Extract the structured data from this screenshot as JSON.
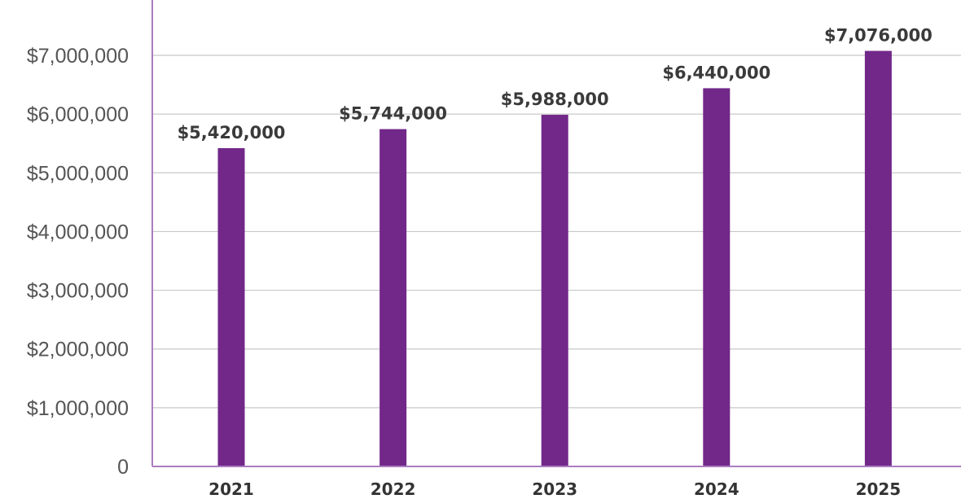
{
  "chart_data": {
    "type": "bar",
    "title": "",
    "xlabel": "",
    "ylabel": "",
    "categories": [
      "2021",
      "2022",
      "2023",
      "2024",
      "2025"
    ],
    "values": [
      5420000,
      5744000,
      5988000,
      6440000,
      7076000
    ],
    "data_labels": [
      "$5,420,000",
      "$5,744,000",
      "$5,988,000",
      "$6,440,000",
      "$7,076,000"
    ],
    "ylim": [
      0,
      7000000
    ],
    "yticks": [
      0,
      1000000,
      2000000,
      3000000,
      4000000,
      5000000,
      6000000,
      7000000
    ],
    "ytick_labels": [
      "0",
      "$1,000,000",
      "$2,000,000",
      "$3,000,000",
      "$4,000,000",
      "$5,000,000",
      "$6,000,000",
      "$7,000,000"
    ],
    "grid": true,
    "legend": "none",
    "colors": {
      "bar": "#722889",
      "axis": "#a97dbf",
      "grid": "#c8c8c8"
    }
  }
}
